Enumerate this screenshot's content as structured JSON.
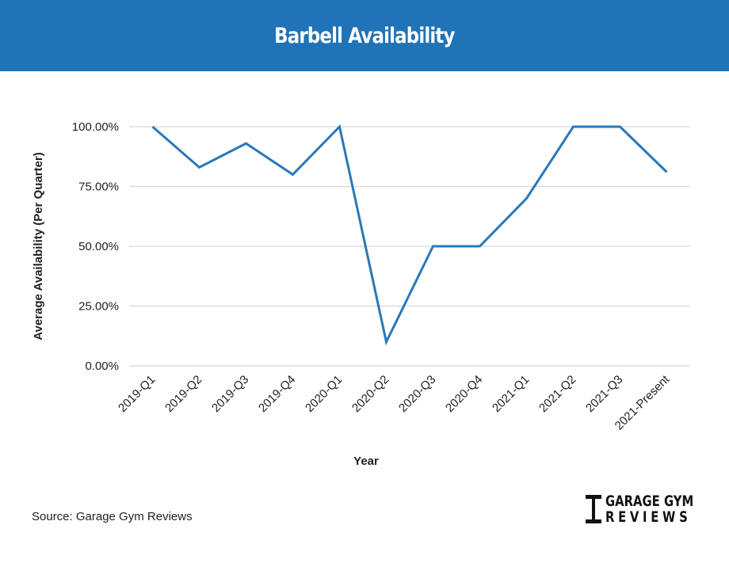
{
  "header": {
    "title": "Barbell Availability"
  },
  "source": "Source: Garage Gym Reviews",
  "logo": {
    "line1": "GARAGE GYM",
    "line2": "REVIEWS"
  },
  "colors": {
    "header": "#1f73b7",
    "line": "#2a78b8",
    "grid": "#dddddd"
  },
  "chart_data": {
    "type": "line",
    "title": "Barbell Availability",
    "xlabel": "Year",
    "ylabel": "Average Availability (Per Quarter)",
    "categories": [
      "2019-Q1",
      "2019-Q2",
      "2019-Q3",
      "2019-Q4",
      "2020-Q1",
      "2020-Q2",
      "2020-Q3",
      "2020-Q4",
      "2021-Q1",
      "2021-Q2",
      "2021-Q3",
      "2021-Present"
    ],
    "values": [
      100,
      83,
      93,
      80,
      100,
      10,
      50,
      50,
      70,
      100,
      100,
      81
    ],
    "yticks": [
      "0.00%",
      "25.00%",
      "50.00%",
      "75.00%",
      "100.00%"
    ],
    "ylim": [
      0,
      100
    ],
    "grid": true,
    "legend": "none"
  }
}
